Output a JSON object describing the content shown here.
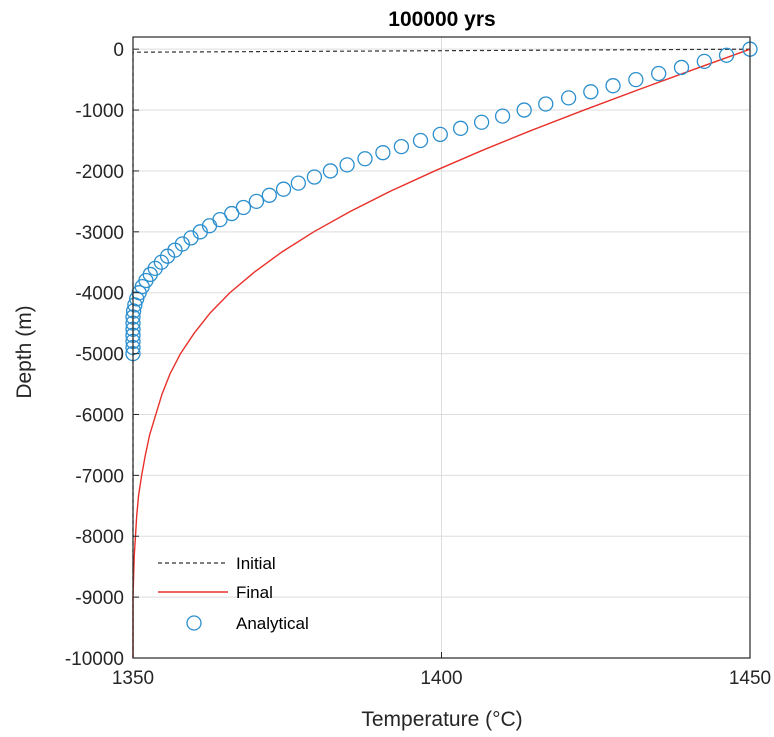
{
  "chart_data": {
    "type": "line",
    "title": "100000 yrs",
    "xlabel": "Temperature (°C)",
    "ylabel": "Depth (m)",
    "xlim": [
      1350,
      1450
    ],
    "ylim": [
      -10000,
      200
    ],
    "xticks": [
      1350,
      1400,
      1450
    ],
    "xtick_labels": [
      "1350",
      "1400",
      "1450"
    ],
    "yticks": [
      0,
      -1000,
      -2000,
      -3000,
      -4000,
      -5000,
      -6000,
      -7000,
      -8000,
      -9000,
      -10000
    ],
    "ytick_labels": [
      "0",
      "-1000",
      "-2000",
      "-3000",
      "-4000",
      "-5000",
      "-6000",
      "-7000",
      "-8000",
      "-9000",
      "-10000"
    ],
    "grid": true,
    "legend_position": "bottom-left",
    "series": [
      {
        "name": "Initial",
        "style": "dashed",
        "color": "#333333",
        "x": [
          1450,
          1350,
          1350
        ],
        "y": [
          0,
          -50,
          -10000
        ]
      },
      {
        "name": "Final",
        "style": "solid",
        "color": "#e8302a",
        "x": [
          1450,
          1440.9,
          1431.9,
          1423.1,
          1414.6,
          1406.5,
          1398.9,
          1391.7,
          1385.2,
          1379.3,
          1374.1,
          1369.6,
          1365.7,
          1362.5,
          1359.9,
          1357.7,
          1356.0,
          1354.7,
          1353.7,
          1352.7,
          1352.0,
          1351.4,
          1350.9,
          1350.6,
          1350.4,
          1350.2,
          1350.1,
          1350.0,
          1350.0,
          1350.0,
          1350.0
        ],
        "y": [
          0,
          -333,
          -667,
          -1000,
          -1333,
          -1667,
          -2000,
          -2333,
          -2667,
          -3000,
          -3333,
          -3667,
          -4000,
          -4333,
          -4667,
          -5000,
          -5333,
          -5667,
          -6000,
          -6333,
          -6667,
          -7000,
          -7333,
          -7667,
          -8000,
          -8333,
          -8667,
          -9000,
          -9333,
          -9667,
          -10000
        ]
      },
      {
        "name": "Analytical",
        "style": "markers",
        "marker": "circle",
        "color": "#2c8fcd",
        "x": [
          1450,
          1446.2,
          1442.6,
          1438.9,
          1435.2,
          1431.5,
          1427.8,
          1424.2,
          1420.6,
          1416.9,
          1413.4,
          1409.9,
          1406.5,
          1403.1,
          1399.8,
          1396.6,
          1393.5,
          1390.5,
          1387.6,
          1384.7,
          1382.0,
          1379.4,
          1376.8,
          1374.4,
          1372.1,
          1370.0,
          1367.9,
          1366.0,
          1364.1,
          1362.4,
          1360.9,
          1359.4,
          1358.0,
          1356.8,
          1355.6,
          1354.6,
          1353.6,
          1352.8,
          1352.1,
          1351.5,
          1351.0,
          1350.6,
          1350.3,
          1350.1,
          1350.0,
          1350.0,
          1350.0,
          1350.0,
          1350.0,
          1350.0,
          1350.0
        ],
        "y": [
          0,
          -100,
          -200,
          -300,
          -400,
          -500,
          -600,
          -700,
          -800,
          -900,
          -1000,
          -1100,
          -1200,
          -1300,
          -1400,
          -1500,
          -1600,
          -1700,
          -1800,
          -1900,
          -2000,
          -2100,
          -2200,
          -2300,
          -2400,
          -2500,
          -2600,
          -2700,
          -2800,
          -2900,
          -3000,
          -3100,
          -3200,
          -3300,
          -3400,
          -3500,
          -3600,
          -3700,
          -3800,
          -3900,
          -4000,
          -4100,
          -4200,
          -4300,
          -4400,
          -4500,
          -4600,
          -4700,
          -4800,
          -4900,
          -5000
        ]
      }
    ]
  }
}
